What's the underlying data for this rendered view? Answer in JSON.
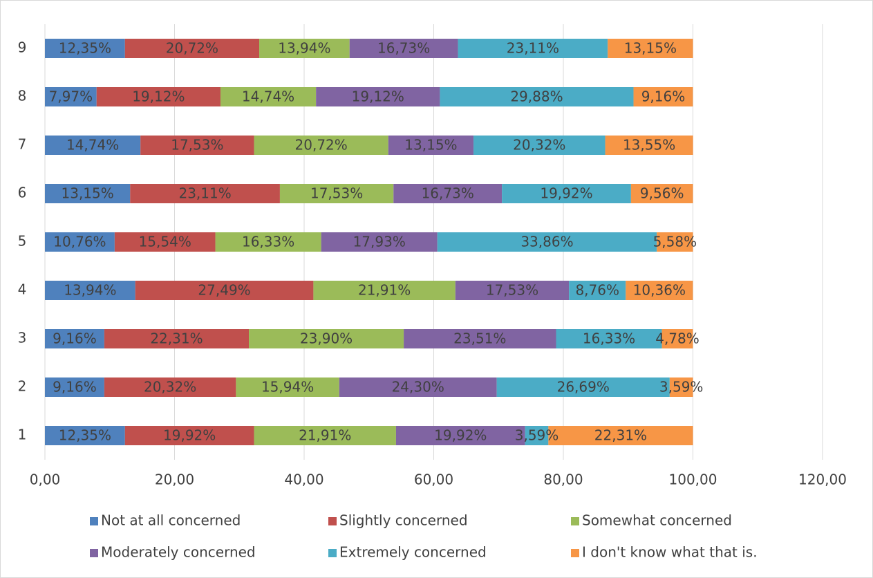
{
  "chart_data": {
    "type": "stacked_bar_horizontal",
    "categories": [
      "1",
      "2",
      "3",
      "4",
      "5",
      "6",
      "7",
      "8",
      "9"
    ],
    "series": [
      {
        "name": "Not at all concerned",
        "color": "#4f81bd",
        "values": [
          12.35,
          9.16,
          9.16,
          13.94,
          10.76,
          13.15,
          14.74,
          7.97,
          12.35
        ],
        "value_labels": [
          "12,35%",
          "9,16%",
          "9,16%",
          "13,94%",
          "10,76%",
          "13,15%",
          "14,74%",
          "7,97%",
          "12,35%"
        ]
      },
      {
        "name": "Slightly concerned",
        "color": "#c0504d",
        "values": [
          19.92,
          20.32,
          22.31,
          27.49,
          15.54,
          23.11,
          17.53,
          19.12,
          20.72
        ],
        "value_labels": [
          "19,92%",
          "20,32%",
          "22,31%",
          "27,49%",
          "15,54%",
          "23,11%",
          "17,53%",
          "19,12%",
          "20,72%"
        ]
      },
      {
        "name": "Somewhat concerned",
        "color": "#9bbb59",
        "values": [
          21.91,
          15.94,
          23.9,
          21.91,
          16.33,
          17.53,
          20.72,
          14.74,
          13.94
        ],
        "value_labels": [
          "21,91%",
          "15,94%",
          "23,90%",
          "21,91%",
          "16,33%",
          "17,53%",
          "20,72%",
          "14,74%",
          "13,94%"
        ]
      },
      {
        "name": "Moderately concerned",
        "color": "#8064a2",
        "values": [
          19.92,
          24.3,
          23.51,
          17.53,
          17.93,
          16.73,
          13.15,
          19.12,
          16.73
        ],
        "value_labels": [
          "19,92%",
          "24,30%",
          "23,51%",
          "17,53%",
          "17,93%",
          "16,73%",
          "13,15%",
          "19,12%",
          "16,73%"
        ]
      },
      {
        "name": "Extremely concerned",
        "color": "#4bacc6",
        "values": [
          3.59,
          26.69,
          16.33,
          8.76,
          33.86,
          19.92,
          20.32,
          29.88,
          23.11
        ],
        "value_labels": [
          "3,59%",
          "26,69%",
          "16,33%",
          "8,76%",
          "33,86%",
          "19,92%",
          "20,32%",
          "29,88%",
          "23,11%"
        ]
      },
      {
        "name": "I don't know what that is.",
        "color": "#f79646",
        "values": [
          22.31,
          3.59,
          4.78,
          10.36,
          5.58,
          9.56,
          13.55,
          9.16,
          13.15
        ],
        "value_labels": [
          "22,31%",
          "3,59%",
          "4,78%",
          "10,36%",
          "5,58%",
          "9,56%",
          "13,55%",
          "9,16%",
          "13,15%"
        ]
      }
    ],
    "xlim": [
      0,
      120
    ],
    "xticks": [
      {
        "value": 0,
        "label": "0,00"
      },
      {
        "value": 20,
        "label": "20,00"
      },
      {
        "value": 40,
        "label": "40,00"
      },
      {
        "value": 60,
        "label": "60,00"
      },
      {
        "value": 80,
        "label": "80,00"
      },
      {
        "value": 100,
        "label": "100,00"
      },
      {
        "value": 120,
        "label": "120,00"
      }
    ],
    "grid": true
  }
}
